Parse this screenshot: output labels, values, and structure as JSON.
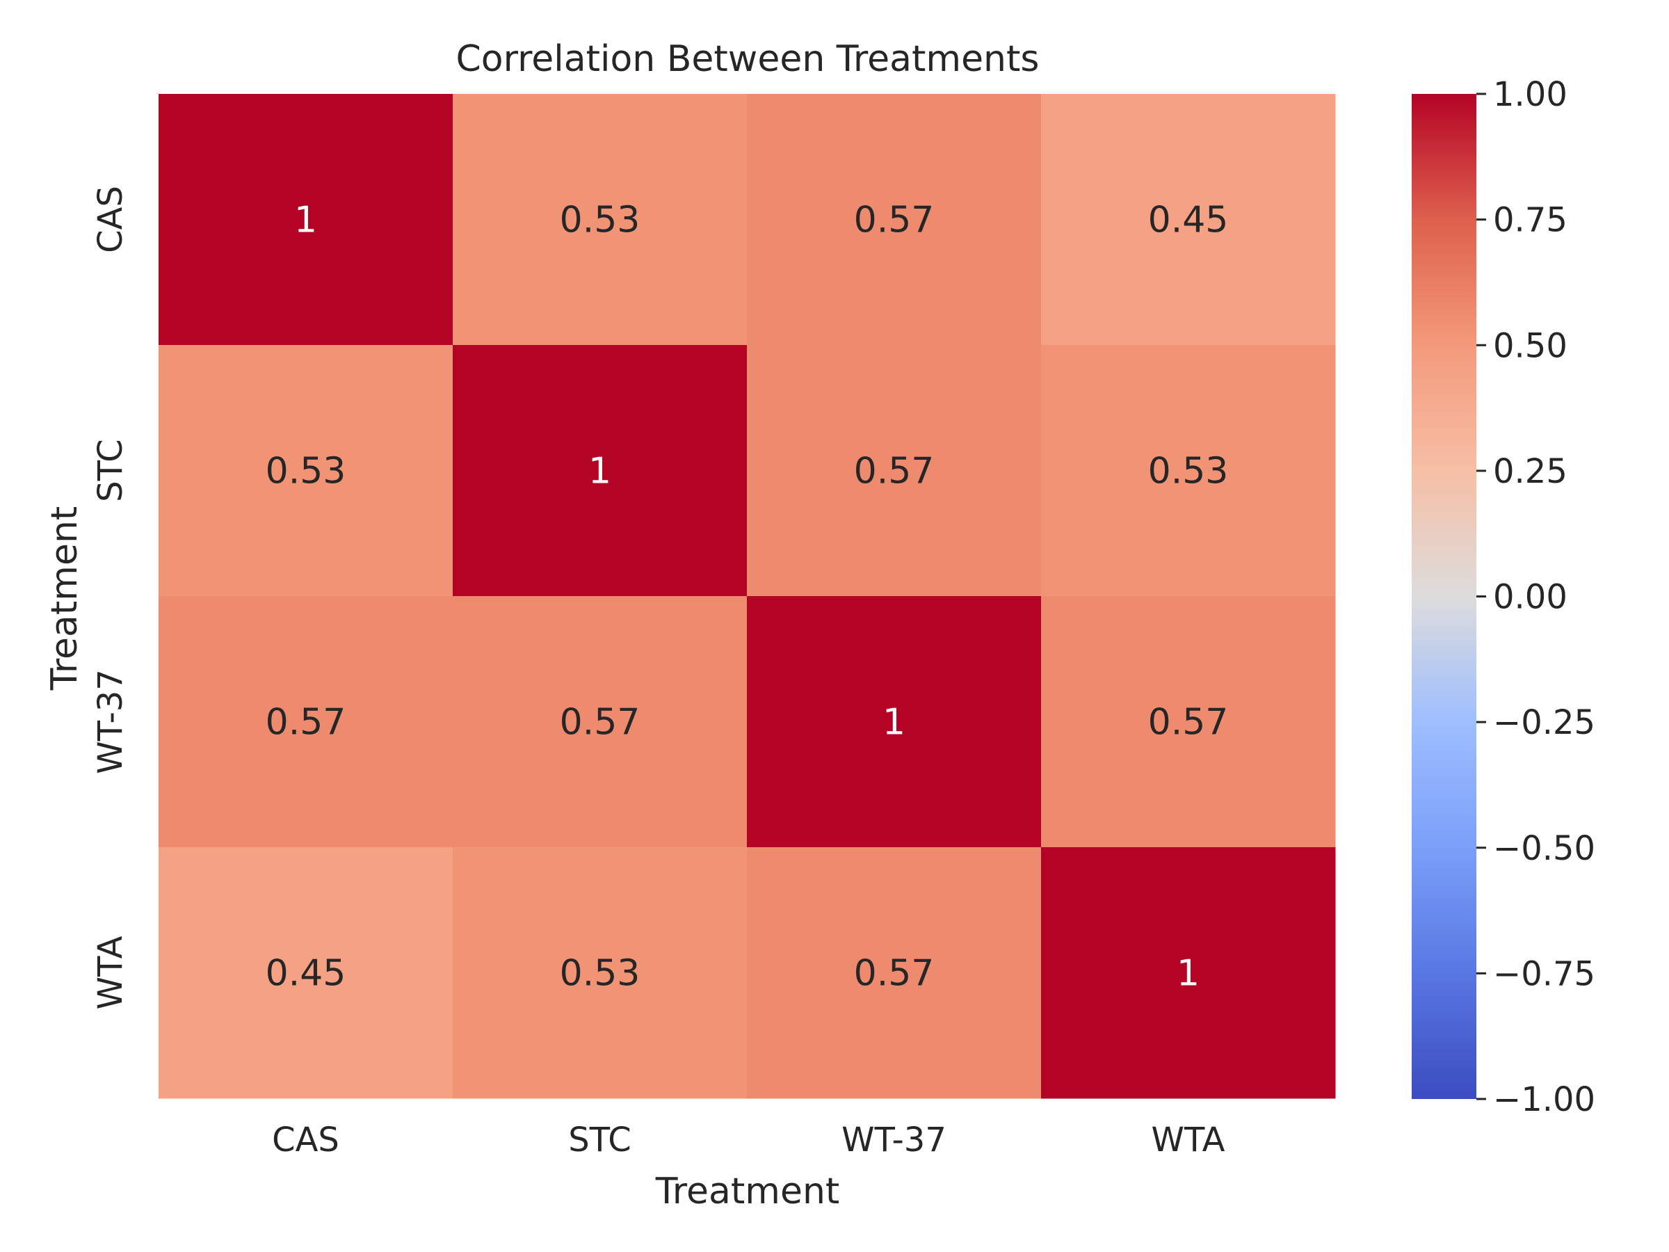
{
  "chart_data": {
    "type": "heatmap",
    "title": "Correlation Between Treatments",
    "xlabel": "Treatment",
    "ylabel": "Treatment",
    "x_categories": [
      "CAS",
      "STC",
      "WT-37",
      "WTA"
    ],
    "y_categories": [
      "CAS",
      "STC",
      "WT-37",
      "WTA"
    ],
    "values": [
      [
        1,
        0.53,
        0.57,
        0.45
      ],
      [
        0.53,
        1,
        0.57,
        0.53
      ],
      [
        0.57,
        0.57,
        1,
        0.57
      ],
      [
        0.45,
        0.53,
        0.57,
        1
      ]
    ],
    "cell_labels": [
      [
        "1",
        "0.53",
        "0.57",
        "0.45"
      ],
      [
        "0.53",
        "1",
        "0.57",
        "0.53"
      ],
      [
        "0.57",
        "0.57",
        "1",
        "0.57"
      ],
      [
        "0.45",
        "0.53",
        "0.57",
        "1"
      ]
    ],
    "colormap": "coolwarm",
    "vmin": -1,
    "vmax": 1,
    "colorbar_ticks": [
      1.0,
      0.75,
      0.5,
      0.25,
      0.0,
      -0.25,
      -0.5,
      -0.75,
      -1.0
    ],
    "colorbar_tick_labels": [
      "1.00",
      "0.75",
      "0.50",
      "0.25",
      "0.00",
      "−0.25",
      "−0.50",
      "−0.75",
      "−1.00"
    ],
    "grid": false,
    "legend": "colorbar-right"
  }
}
